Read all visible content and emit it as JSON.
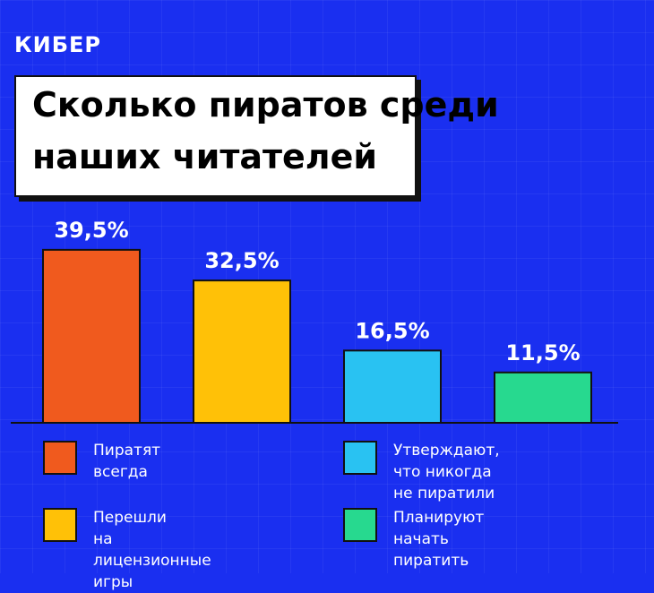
{
  "brand": "КИБЕР",
  "title": {
    "line1": "Сколько пиратов среди",
    "line2": "наших читателей"
  },
  "colors": {
    "background": "#1a2ff0",
    "series": [
      "#f05a1e",
      "#ffc107",
      "#29c2f2",
      "#27d98f"
    ]
  },
  "chart_data": {
    "type": "bar",
    "title": "Сколько пиратов среди наших читателей",
    "categories": [
      "Пиратят всегда",
      "Перешли на лицензионные игры",
      "Утверждают, что никогда не пиратили",
      "Планируют начать пиратить"
    ],
    "values": [
      39.5,
      32.5,
      16.5,
      11.5
    ],
    "data_labels": [
      "39,5%",
      "32,5%",
      "16,5%",
      "11,5%"
    ],
    "ylim": [
      0,
      45
    ],
    "grid": false,
    "legend": "bottom"
  },
  "legend": [
    {
      "line1": "Пиратят всегда",
      "line2": ""
    },
    {
      "line1": "Утверждают, что никогда",
      "line2": "не пиратили"
    },
    {
      "line1": "Перешли",
      "line2": "на лицензионные игры"
    },
    {
      "line1": "Планируют начать",
      "line2": "пиратить"
    }
  ]
}
